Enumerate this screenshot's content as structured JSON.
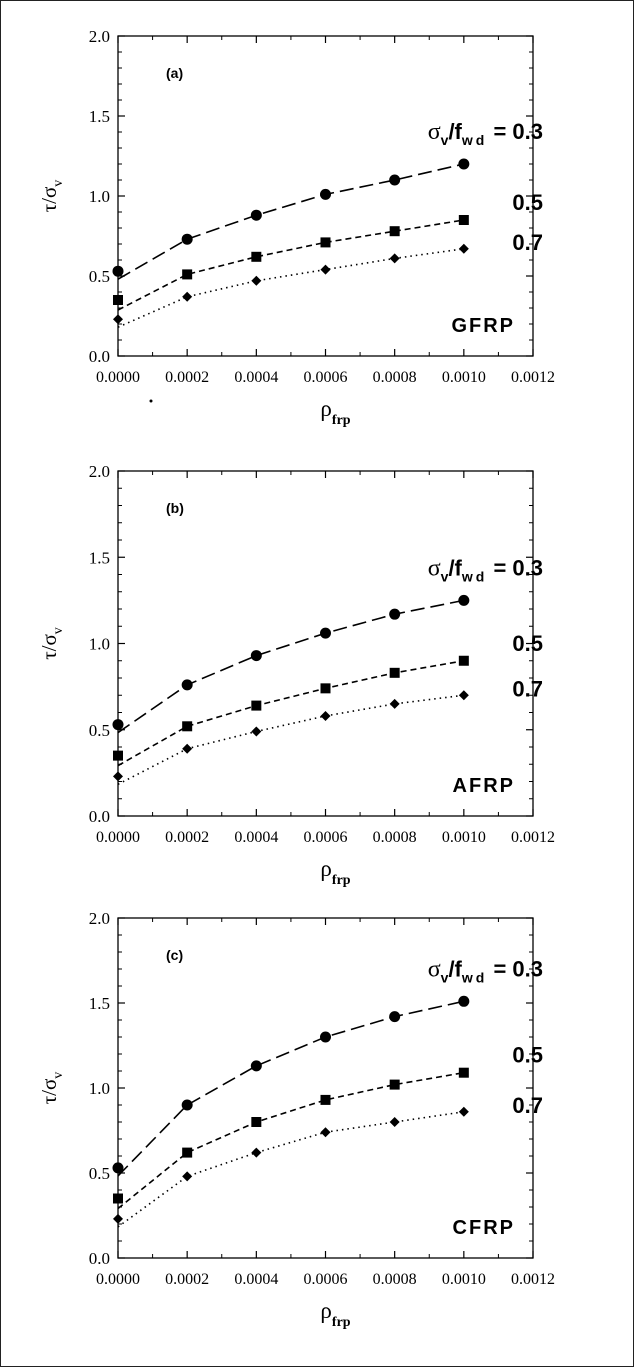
{
  "chart_data": [
    {
      "type": "line",
      "panel_label": "(a)",
      "material": "GFRP",
      "ylabel": "τ/σ",
      "ylabel_sub": "v",
      "xlabel": "ρ",
      "xlabel_sub": "frp",
      "xlim": [
        0,
        0.0012
      ],
      "ylim": [
        0,
        2.0
      ],
      "xticks": [
        "0.0000",
        "0.0002",
        "0.0004",
        "0.0006",
        "0.0008",
        "0.0010",
        "0.0012"
      ],
      "yticks": [
        "0.0",
        "0.5",
        "1.0",
        "1.5",
        "2.0"
      ],
      "x": [
        0,
        0.0002,
        0.0004,
        0.0006,
        0.0008,
        0.001
      ],
      "series": [
        {
          "name": "0.3",
          "marker": "circle",
          "dash": "long",
          "values": [
            0.53,
            0.73,
            0.88,
            1.01,
            1.1,
            1.2
          ]
        },
        {
          "name": "0.5",
          "marker": "square",
          "dash": "short",
          "values": [
            0.35,
            0.51,
            0.62,
            0.71,
            0.78,
            0.85
          ]
        },
        {
          "name": "0.7",
          "marker": "diamond",
          "dash": "dot",
          "values": [
            0.23,
            0.37,
            0.47,
            0.54,
            0.61,
            0.67
          ]
        }
      ],
      "legend_prefix": "σ",
      "legend_prefix_sub": "v",
      "legend_mid": "/f",
      "legend_mid_sub": "wd",
      "legend_eq": "= 0.3"
    },
    {
      "type": "line",
      "panel_label": "(b)",
      "material": "AFRP",
      "ylabel": "τ/σ",
      "ylabel_sub": "v",
      "xlabel": "ρ",
      "xlabel_sub": "frp",
      "xlim": [
        0,
        0.0012
      ],
      "ylim": [
        0,
        2.0
      ],
      "xticks": [
        "0.0000",
        "0.0002",
        "0.0004",
        "0.0006",
        "0.0008",
        "0.0010",
        "0.0012"
      ],
      "yticks": [
        "0.0",
        "0.5",
        "1.0",
        "1.5",
        "2.0"
      ],
      "x": [
        0,
        0.0002,
        0.0004,
        0.0006,
        0.0008,
        0.001
      ],
      "series": [
        {
          "name": "0.3",
          "marker": "circle",
          "dash": "long",
          "values": [
            0.53,
            0.76,
            0.93,
            1.06,
            1.17,
            1.25
          ]
        },
        {
          "name": "0.5",
          "marker": "square",
          "dash": "short",
          "values": [
            0.35,
            0.52,
            0.64,
            0.74,
            0.83,
            0.9
          ]
        },
        {
          "name": "0.7",
          "marker": "diamond",
          "dash": "dot",
          "values": [
            0.23,
            0.39,
            0.49,
            0.58,
            0.65,
            0.7
          ]
        }
      ],
      "legend_prefix": "σ",
      "legend_prefix_sub": "v",
      "legend_mid": "/f",
      "legend_mid_sub": "wd",
      "legend_eq": "= 0.3"
    },
    {
      "type": "line",
      "panel_label": "(c)",
      "material": "CFRP",
      "ylabel": "τ/σ",
      "ylabel_sub": "v",
      "xlabel": "ρ",
      "xlabel_sub": "frp",
      "xlim": [
        0,
        0.0012
      ],
      "ylim": [
        0,
        2.0
      ],
      "xticks": [
        "0.0000",
        "0.0002",
        "0.0004",
        "0.0006",
        "0.0008",
        "0.0010",
        "0.0012"
      ],
      "yticks": [
        "0.0",
        "0.5",
        "1.0",
        "1.5",
        "2.0"
      ],
      "x": [
        0,
        0.0002,
        0.0004,
        0.0006,
        0.0008,
        0.001
      ],
      "series": [
        {
          "name": "0.3",
          "marker": "circle",
          "dash": "long",
          "values": [
            0.53,
            0.9,
            1.13,
            1.3,
            1.42,
            1.51
          ]
        },
        {
          "name": "0.5",
          "marker": "square",
          "dash": "short",
          "values": [
            0.35,
            0.62,
            0.8,
            0.93,
            1.02,
            1.09
          ]
        },
        {
          "name": "0.7",
          "marker": "diamond",
          "dash": "dot",
          "values": [
            0.23,
            0.48,
            0.62,
            0.74,
            0.8,
            0.86
          ]
        }
      ],
      "legend_prefix": "σ",
      "legend_prefix_sub": "v",
      "legend_mid": "/f",
      "legend_mid_sub": "wd",
      "legend_eq": "= 0.3"
    }
  ]
}
